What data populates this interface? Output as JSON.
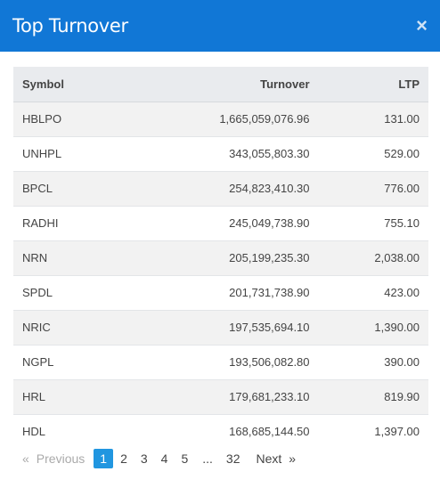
{
  "header": {
    "title": "Top Turnover",
    "close_label": "×"
  },
  "table": {
    "columns": [
      "Symbol",
      "Turnover",
      "LTP"
    ],
    "rows": [
      [
        "HBLPO",
        "1,665,059,076.96",
        "131.00"
      ],
      [
        "UNHPL",
        "343,055,803.30",
        "529.00"
      ],
      [
        "BPCL",
        "254,823,410.30",
        "776.00"
      ],
      [
        "RADHI",
        "245,049,738.90",
        "755.10"
      ],
      [
        "NRN",
        "205,199,235.30",
        "2,038.00"
      ],
      [
        "SPDL",
        "201,731,738.90",
        "423.00"
      ],
      [
        "NRIC",
        "197,535,694.10",
        "1,390.00"
      ],
      [
        "NGPL",
        "193,506,082.80",
        "390.00"
      ],
      [
        "HRL",
        "179,681,233.10",
        "819.90"
      ],
      [
        "HDL",
        "168,685,144.50",
        "1,397.00"
      ]
    ]
  },
  "pagination": {
    "prev_arrow": "«",
    "prev_label": "Previous",
    "pages": [
      "1",
      "2",
      "3",
      "4",
      "5"
    ],
    "active_page": "1",
    "ellipsis": "...",
    "last_page": "32",
    "next_label": "Next",
    "next_arrow": "»"
  },
  "colors": {
    "header_bg": "#1177d6",
    "active_page_bg": "#2196e0"
  }
}
